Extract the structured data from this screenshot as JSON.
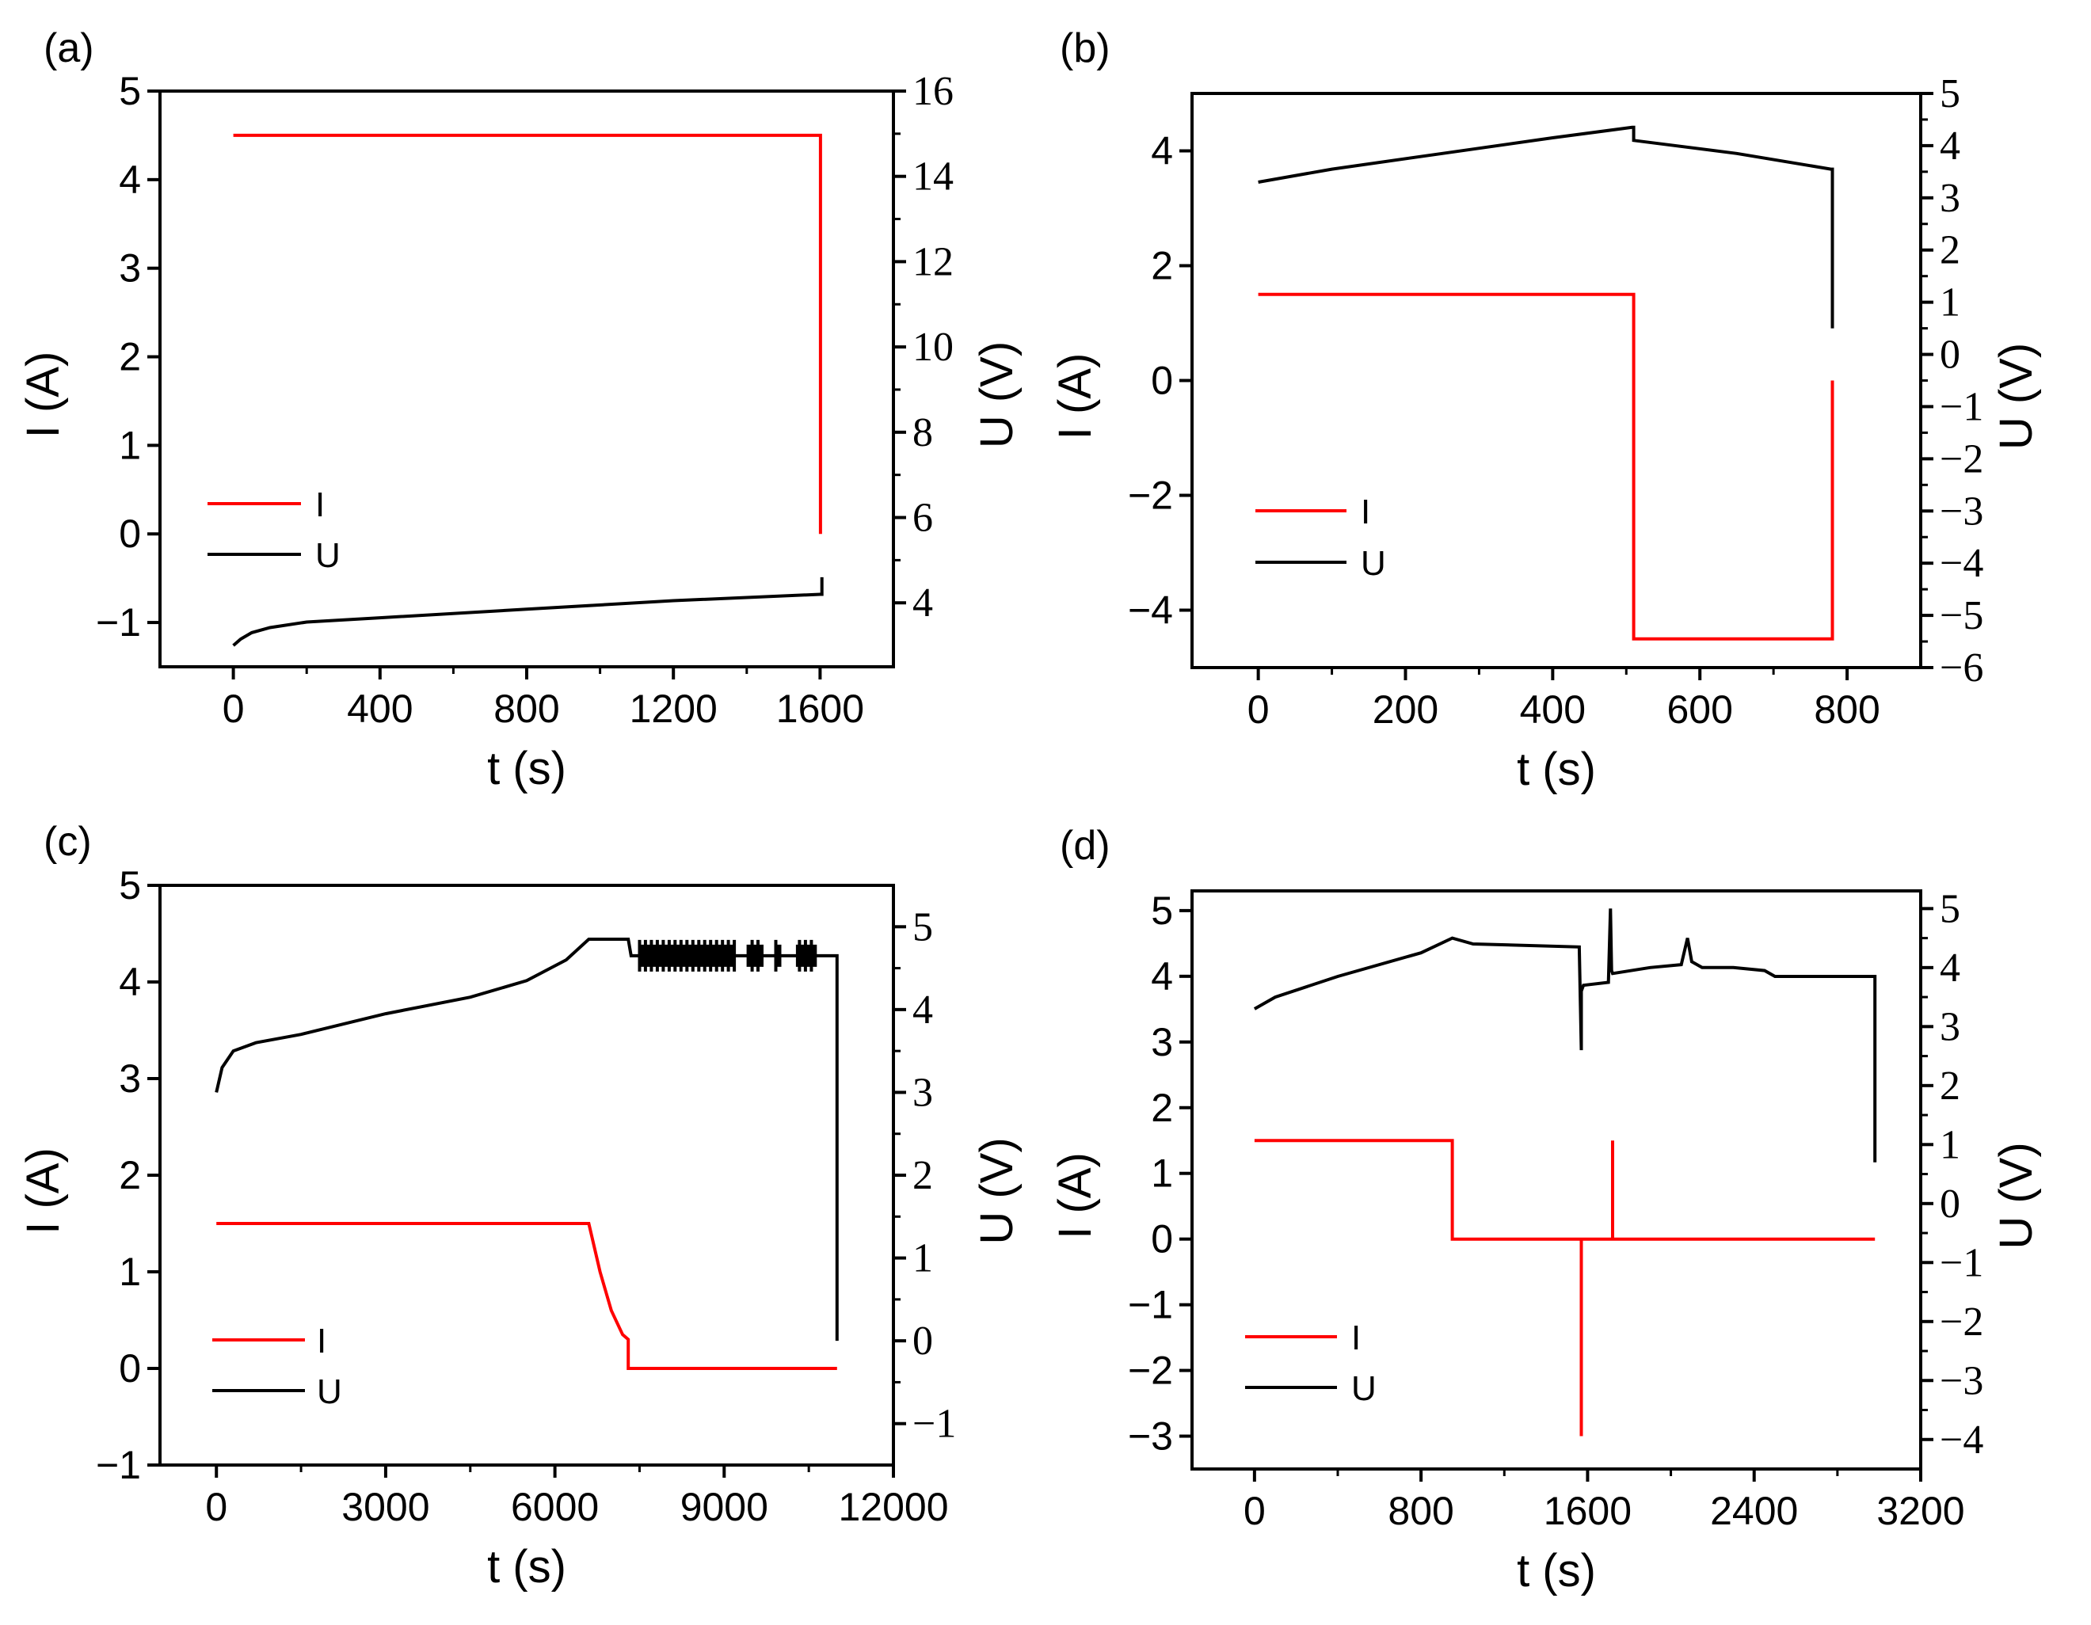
{
  "chart_data": [
    {
      "panel_label": "(a)",
      "type": "line",
      "xlabel": "t (s)",
      "ylabel_left": "I (A)",
      "ylabel_right": "U (V)",
      "xlim": [
        -200,
        1800
      ],
      "ylim_left": [
        -1.5,
        5
      ],
      "ylim_right": [
        2.5,
        16
      ],
      "xticks": [
        0,
        400,
        800,
        1200,
        1600
      ],
      "xtick_labels": [
        "0",
        "400",
        "800",
        "1200",
        "1600"
      ],
      "yticks_left": [
        -1,
        0,
        1,
        2,
        3,
        4,
        5
      ],
      "ytick_labels_left": [
        "−1",
        "0",
        "1",
        "2",
        "3",
        "4",
        "5"
      ],
      "yticks_right": [
        4,
        6,
        8,
        10,
        12,
        14,
        16
      ],
      "ytick_labels_right": [
        "4",
        "6",
        "8",
        "10",
        "12",
        "14",
        "16"
      ],
      "legend": [
        {
          "name": "I",
          "color": "#ff0000"
        },
        {
          "name": "U",
          "color": "#000000"
        }
      ],
      "series": [
        {
          "name": "I",
          "axis": "left",
          "color": "#ff0000",
          "x": [
            0,
            1600,
            1601,
            1601
          ],
          "y": [
            4.5,
            4.5,
            4.5,
            0
          ]
        },
        {
          "name": "U",
          "axis": "right",
          "color": "#000000",
          "x": [
            0,
            20,
            50,
            100,
            200,
            400,
            800,
            1200,
            1600,
            1605,
            1605
          ],
          "y": [
            3.0,
            3.15,
            3.3,
            3.42,
            3.55,
            3.65,
            3.85,
            4.05,
            4.2,
            4.2,
            4.6
          ]
        }
      ]
    },
    {
      "panel_label": "(b)",
      "type": "line",
      "xlabel": "t (s)",
      "ylabel_left": "I (A)",
      "ylabel_right": "U (V)",
      "xlim": [
        -90,
        900
      ],
      "ylim_left": [
        -5,
        5
      ],
      "ylim_right": [
        -6,
        5
      ],
      "xticks": [
        0,
        200,
        400,
        600,
        800
      ],
      "xtick_labels": [
        "0",
        "200",
        "400",
        "600",
        "800"
      ],
      "yticks_left": [
        -4,
        -2,
        0,
        2,
        4
      ],
      "ytick_labels_left": [
        "−4",
        "−2",
        "0",
        "2",
        "4"
      ],
      "yticks_right": [
        -6,
        -5,
        -4,
        -3,
        -2,
        -1,
        0,
        1,
        2,
        3,
        4,
        5
      ],
      "ytick_labels_right": [
        "−6",
        "−5",
        "−4",
        "−3",
        "−2",
        "−1",
        "0",
        "1",
        "2",
        "3",
        "4",
        "5"
      ],
      "legend": [
        {
          "name": "I",
          "color": "#ff0000"
        },
        {
          "name": "U",
          "color": "#000000"
        }
      ],
      "series": [
        {
          "name": "I",
          "axis": "left",
          "color": "#ff0000",
          "x": [
            0,
            510,
            510,
            780,
            780
          ],
          "y": [
            1.5,
            1.5,
            -4.5,
            -4.5,
            0
          ]
        },
        {
          "name": "U",
          "axis": "right",
          "color": "#000000",
          "x": [
            0,
            100,
            250,
            400,
            508,
            510,
            510,
            650,
            778,
            780,
            780
          ],
          "y": [
            3.3,
            3.55,
            3.85,
            4.15,
            4.35,
            4.35,
            4.1,
            3.85,
            3.55,
            3.55,
            0.5
          ]
        }
      ]
    },
    {
      "panel_label": "(c)",
      "type": "line",
      "xlabel": "t (s)",
      "ylabel_left": "I (A)",
      "ylabel_right": "U (V)",
      "xlim": [
        -1000,
        12000
      ],
      "ylim_left": [
        -1,
        5
      ],
      "ylim_right": [
        -1.5,
        5.5
      ],
      "xticks": [
        0,
        3000,
        6000,
        9000,
        12000
      ],
      "xtick_labels": [
        "0",
        "3000",
        "6000",
        "9000",
        "12000"
      ],
      "yticks_left": [
        -1,
        0,
        1,
        2,
        3,
        4,
        5
      ],
      "ytick_labels_left": [
        "−1",
        "0",
        "1",
        "2",
        "3",
        "4",
        "5"
      ],
      "yticks_right": [
        -1,
        0,
        1,
        2,
        3,
        4,
        5
      ],
      "ytick_labels_right": [
        "−1",
        "0",
        "1",
        "2",
        "3",
        "4",
        "5"
      ],
      "legend": [
        {
          "name": "I",
          "color": "#ff0000"
        },
        {
          "name": "U",
          "color": "#000000"
        }
      ],
      "series": [
        {
          "name": "I",
          "axis": "left",
          "color": "#ff0000",
          "x": [
            0,
            6600,
            6800,
            7000,
            7200,
            7300,
            7300,
            11000
          ],
          "y": [
            1.5,
            1.5,
            1.0,
            0.6,
            0.35,
            0.3,
            0,
            0
          ]
        },
        {
          "name": "U",
          "axis": "right",
          "color": "#000000",
          "x": [
            0,
            100,
            300,
            700,
            1500,
            3000,
            4500,
            5500,
            6200,
            6600,
            7300,
            7350,
            11000,
            11000
          ],
          "y": [
            3.0,
            3.3,
            3.5,
            3.6,
            3.7,
            3.95,
            4.15,
            4.35,
            4.6,
            4.85,
            4.85,
            4.65,
            4.65,
            0.0
          ]
        }
      ]
    },
    {
      "panel_label": "(d)",
      "type": "line",
      "xlabel": "t (s)",
      "ylabel_left": "I (A)",
      "ylabel_right": "U (V)",
      "xlim": [
        -300,
        3200
      ],
      "ylim_left": [
        -3.5,
        5.3
      ],
      "ylim_right": [
        -4.5,
        5.3
      ],
      "xticks": [
        0,
        800,
        1600,
        2400,
        3200
      ],
      "xtick_labels": [
        "0",
        "800",
        "1600",
        "2400",
        "3200"
      ],
      "yticks_left": [
        -3,
        -2,
        -1,
        0,
        1,
        2,
        3,
        4,
        5
      ],
      "ytick_labels_left": [
        "−3",
        "−2",
        "−1",
        "0",
        "1",
        "2",
        "3",
        "4",
        "5"
      ],
      "yticks_right": [
        -4,
        -3,
        -2,
        -1,
        0,
        1,
        2,
        3,
        4,
        5
      ],
      "ytick_labels_right": [
        "−4",
        "−3",
        "−2",
        "−1",
        "0",
        "1",
        "2",
        "3",
        "4",
        "5"
      ],
      "legend": [
        {
          "name": "I",
          "color": "#ff0000"
        },
        {
          "name": "U",
          "color": "#000000"
        }
      ],
      "series": [
        {
          "name": "I",
          "axis": "left",
          "color": "#ff0000",
          "x": [
            0,
            950,
            950,
            1570,
            1570,
            1570,
            1720,
            1720,
            1720,
            2980
          ],
          "y": [
            1.5,
            1.5,
            0,
            0,
            -3.0,
            0,
            0,
            1.5,
            0,
            0
          ]
        },
        {
          "name": "U",
          "axis": "right",
          "color": "#000000",
          "x": [
            0,
            100,
            400,
            800,
            950,
            1050,
            1560,
            1570,
            1570,
            1580,
            1700,
            1710,
            1715,
            1720,
            1900,
            2050,
            2080,
            2100,
            2150,
            2300,
            2450,
            2500,
            2980,
            2980
          ],
          "y": [
            3.3,
            3.5,
            3.85,
            4.25,
            4.5,
            4.4,
            4.35,
            2.6,
            3.6,
            3.7,
            3.75,
            5.0,
            3.95,
            3.9,
            4.0,
            4.05,
            4.5,
            4.1,
            4.0,
            4.0,
            3.95,
            3.85,
            3.85,
            0.7
          ]
        }
      ]
    }
  ]
}
